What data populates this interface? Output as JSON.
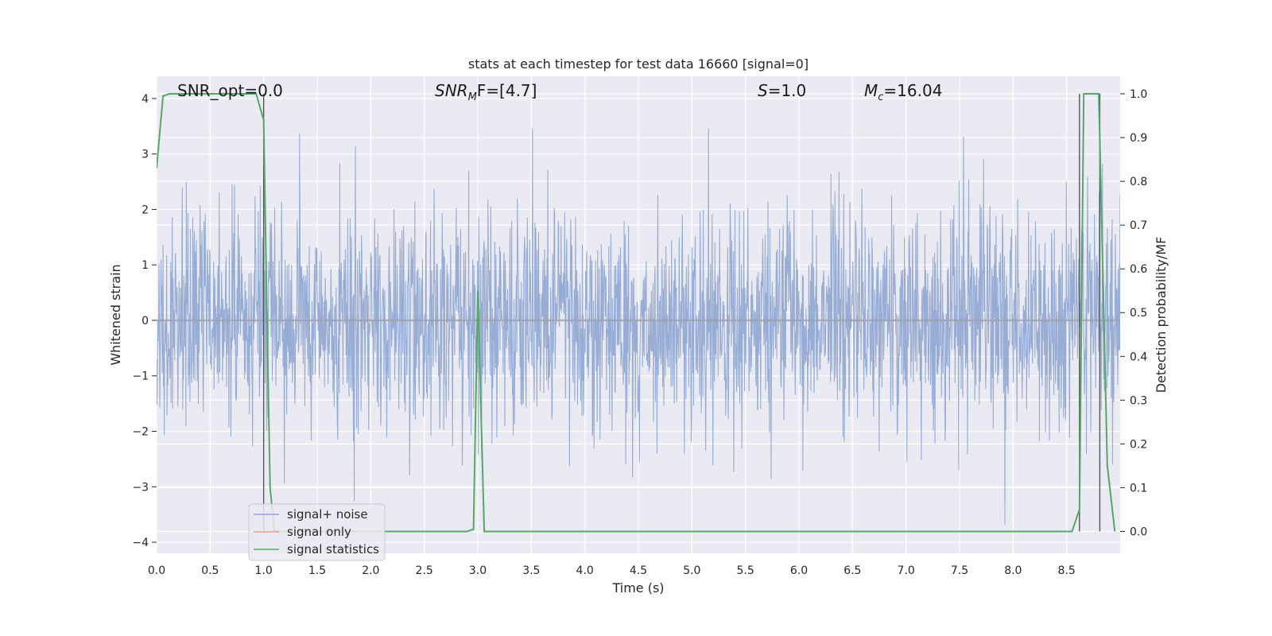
{
  "chart_data": {
    "type": "line",
    "title": "stats at each timestep for test data 16660 [signal=0]",
    "xlabel": "Time (s)",
    "ylabel": "Whitened strain",
    "y2label": "Detection probability/MF",
    "xlim": [
      0.0,
      9.0
    ],
    "ylim": [
      -4.2,
      4.4
    ],
    "y2lim": [
      -0.05,
      1.04
    ],
    "xticks": [
      "0.0",
      "0.5",
      "1.0",
      "1.5",
      "2.0",
      "2.5",
      "3.0",
      "3.5",
      "4.0",
      "4.5",
      "5.0",
      "5.5",
      "6.0",
      "6.5",
      "7.0",
      "7.5",
      "8.0",
      "8.5"
    ],
    "xtick_values": [
      0.0,
      0.5,
      1.0,
      1.5,
      2.0,
      2.5,
      3.0,
      3.5,
      4.0,
      4.5,
      5.0,
      5.5,
      6.0,
      6.5,
      7.0,
      7.5,
      8.0,
      8.5
    ],
    "yticks": [
      "4",
      "3",
      "2",
      "1",
      "0",
      "−1",
      "−2",
      "−3",
      "−4"
    ],
    "ytick_values": [
      4,
      3,
      2,
      1,
      0,
      -1,
      -2,
      -3,
      -4
    ],
    "y2ticks": [
      "1.0",
      "0.9",
      "0.8",
      "0.7",
      "0.6",
      "0.5",
      "0.4",
      "0.3",
      "0.2",
      "0.1",
      "0.0"
    ],
    "y2tick_values": [
      1.0,
      0.9,
      0.8,
      0.7,
      0.6,
      0.5,
      0.4,
      0.3,
      0.2,
      0.1,
      0.0
    ],
    "grid": true,
    "legend_position": "lower-left",
    "annotations": {
      "snr_opt_text": "SNR_opt=0.0",
      "snr_mf_base": "SNR",
      "snr_mf_sub": "M",
      "snr_mf_rest": "F=[4.7]",
      "s_italic": "S",
      "s_rest": "=1.0",
      "mc_base": "M",
      "mc_sub": "c",
      "mc_rest": "=16.04"
    },
    "noise": {
      "seed": 16660,
      "std": 1.0,
      "max_abs": 4.0,
      "t_range": [
        0.0,
        9.0
      ]
    },
    "series": [
      {
        "name": "signal+ noise",
        "color": "#8fa6d1",
        "kind": "noise"
      },
      {
        "name": "signal only",
        "color": "#e8a288",
        "kind": "line",
        "x": [
          0.0,
          9.0
        ],
        "y": [
          0.0,
          0.0
        ]
      },
      {
        "name": "signal statistics",
        "color": "#55a868",
        "kind": "line",
        "axis": "right",
        "x": [
          0.0,
          0.06,
          0.12,
          0.2,
          0.5,
          0.8,
          0.93,
          1.0,
          1.03,
          1.06,
          1.1,
          2.9,
          2.96,
          3.0,
          3.06,
          3.12,
          8.55,
          8.62,
          8.66,
          8.72,
          8.8,
          8.88,
          8.95
        ],
        "y": [
          0.83,
          0.995,
          1.0,
          1.0,
          1.0,
          1.0,
          1.0,
          0.94,
          0.5,
          0.1,
          0.0,
          0.0,
          0.005,
          0.55,
          0.0,
          0.0,
          0.0,
          0.05,
          1.0,
          1.0,
          1.0,
          0.15,
          0.0
        ]
      }
    ],
    "vertical_lines": [
      1.0,
      8.62,
      8.81
    ]
  }
}
